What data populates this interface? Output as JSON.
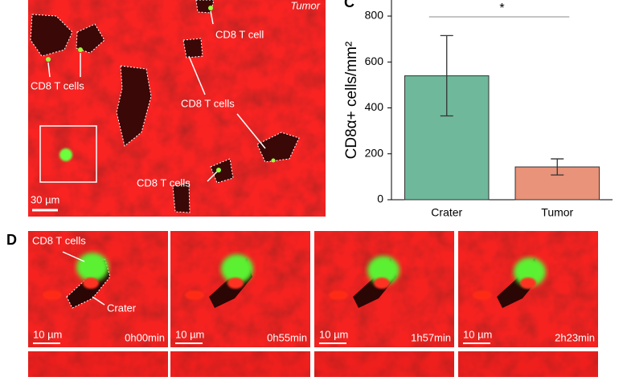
{
  "panels": {
    "top_image": {
      "corner_label": "Tumor",
      "labels": [
        "CD8 T cell",
        "CD8 T cells",
        "CD8 T cells",
        "CD8 T cells"
      ],
      "scale_bar": "30 µm"
    },
    "panel_c_letter": "C",
    "panel_d": {
      "letter": "D",
      "labels": [
        "CD8 T cells",
        "Crater"
      ],
      "scale_bar": "10 µm",
      "frames": [
        "0h00min",
        "0h55min",
        "1h57min",
        "2h23min"
      ]
    }
  },
  "chart_data": {
    "type": "bar",
    "ylabel": "CD8α+ cells/mm²",
    "categories": [
      "Crater",
      "Tumor"
    ],
    "values": [
      540,
      143
    ],
    "errors": [
      175,
      35
    ],
    "colors": [
      "#6fb89c",
      "#e8937a"
    ],
    "annotation": "*",
    "ylim": [
      0,
      870
    ],
    "yticks": [
      0,
      200,
      400,
      600,
      800
    ]
  }
}
